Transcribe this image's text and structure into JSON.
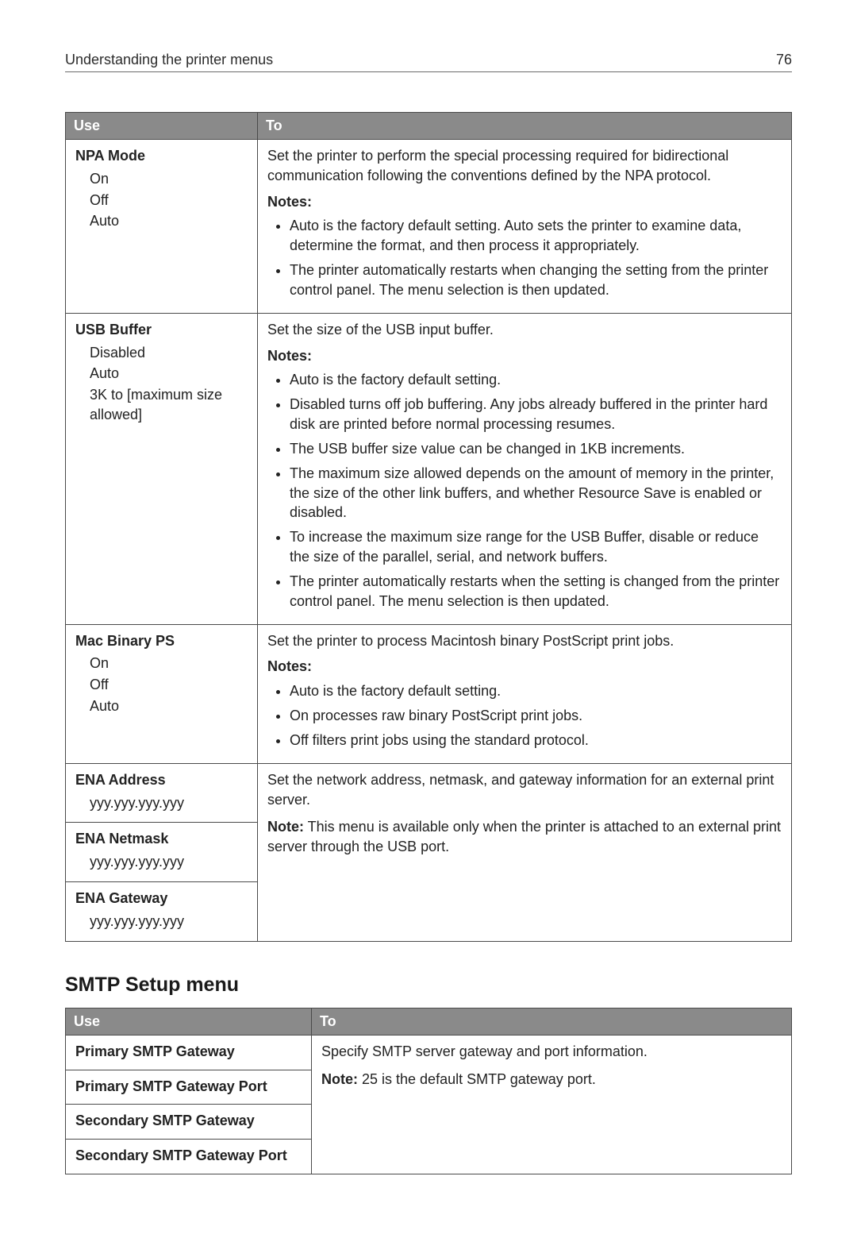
{
  "header": {
    "title": "Understanding the printer menus",
    "page_number": "76"
  },
  "table1": {
    "col_use": "Use",
    "col_to": "To",
    "rows": {
      "npa": {
        "name": "NPA Mode",
        "options": [
          "On",
          "Off",
          "Auto"
        ],
        "desc": "Set the printer to perform the special processing required for bidirectional communication following the conventions defined by the NPA protocol.",
        "notes_label": "Notes:",
        "notes": [
          "Auto is the factory default setting. Auto sets the printer to examine data, determine the format, and then process it appropriately.",
          "The printer automatically restarts when changing the setting from the printer control panel. The menu selection is then updated."
        ]
      },
      "usb": {
        "name": "USB Buffer",
        "options": [
          "Disabled",
          "Auto",
          "3K to [maximum size allowed]"
        ],
        "desc": "Set the size of the USB input buffer.",
        "notes_label": "Notes:",
        "notes": [
          "Auto is the factory default setting.",
          "Disabled turns off job buffering. Any jobs already buffered in the printer hard disk are printed before normal processing resumes.",
          "The USB buffer size value can be changed in 1KB increments.",
          "The maximum size allowed depends on the amount of memory in the printer, the size of the other link buffers, and whether Resource Save is enabled or disabled.",
          "To increase the maximum size range for the USB Buffer, disable or reduce the size of the parallel, serial, and network buffers.",
          "The printer automatically restarts when the setting is changed from the printer control panel. The menu selection is then updated."
        ]
      },
      "mac": {
        "name": "Mac Binary PS",
        "options": [
          "On",
          "Off",
          "Auto"
        ],
        "desc": "Set the printer to process Macintosh binary PostScript print jobs.",
        "notes_label": "Notes:",
        "notes": [
          "Auto is the factory default setting.",
          "On processes raw binary PostScript print jobs.",
          "Off filters print jobs using the standard protocol."
        ]
      },
      "ena": {
        "addr_name": "ENA Address",
        "addr_opt": "yyy.yyy.yyy.yyy",
        "mask_name": "ENA Netmask",
        "mask_opt": "yyy.yyy.yyy.yyy",
        "gw_name": "ENA Gateway",
        "gw_opt": "yyy.yyy.yyy.yyy",
        "desc": "Set the network address, netmask, and gateway information for an external print server.",
        "note_bold": "Note:",
        "note_text": " This menu is available only when the printer is attached to an external print server through the USB port."
      }
    }
  },
  "section2": {
    "title": "SMTP Setup menu",
    "col_use": "Use",
    "col_to": "To",
    "rows": {
      "r1": "Primary SMTP Gateway",
      "r2": "Primary SMTP Gateway Port",
      "r3": "Secondary SMTP Gateway",
      "r4": "Secondary SMTP Gateway Port",
      "desc": "Specify SMTP server gateway and port information.",
      "note_bold": "Note:",
      "note_text": " 25 is the default SMTP gateway port."
    }
  }
}
